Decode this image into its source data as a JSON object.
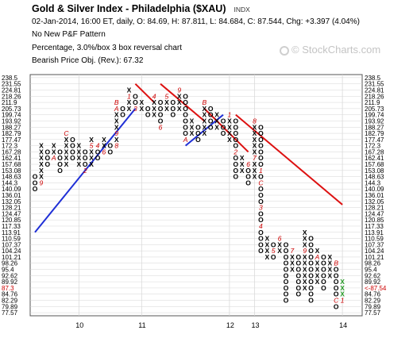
{
  "header": {
    "title": "Gold & Silver Index - Philadelphia ($XAU)",
    "exchange": "INDX",
    "quote_line": "02-Jan-2014, 16:00 ET, daily, O: 84.69, H: 87.811, L: 84.684, C: 87.544, Chg: +3.397 (4.04%)",
    "pattern_line": "No New P&F Pattern",
    "method_line": "Percentage, 3.0%/box 3 box reversal chart",
    "objective_line": "Bearish Price Obj. (Rev.): 67.32"
  },
  "watermark": {
    "text": "© StockCharts.com",
    "logo_icon": "stockcharts-circle-icon"
  },
  "chart_data": {
    "type": "point-and-figure",
    "box_size_percent": 3.0,
    "reversal_boxes": 3,
    "price_levels": [
      "238.5",
      "231.55",
      "224.81",
      "218.26",
      "211.9",
      "205.73",
      "199.74",
      "193.92",
      "188.27",
      "182.79",
      "177.47",
      "172.3",
      "167.28",
      "162.41",
      "157.68",
      "153.08",
      "148.63",
      "144.3",
      "140.09",
      "136.01",
      "132.05",
      "128.21",
      "124.47",
      "120.85",
      "117.33",
      "113.91",
      "110.59",
      "107.37",
      "104.24",
      "101.21",
      "98.26",
      "95.4",
      "92.62",
      "89.92",
      "87.3",
      "84.76",
      "82.29",
      "79.89",
      "77.57"
    ],
    "last_price_label": "<-87.54",
    "last_price_level": "87.3",
    "x_labels": [
      {
        "label": "10",
        "column": 7
      },
      {
        "label": "11",
        "column": 17
      },
      {
        "label": "12",
        "column": 31
      },
      {
        "label": "13",
        "column": 35
      },
      {
        "label": "14",
        "column": 49
      }
    ],
    "columns": [
      {
        "type": "O",
        "top": "148.63",
        "bottom": "140.09"
      },
      {
        "type": "X",
        "top": "172.3",
        "bottom": "144.3",
        "marks": {
          "144.3": "9"
        }
      },
      {
        "type": "O",
        "top": "167.28",
        "bottom": "157.68"
      },
      {
        "type": "X",
        "top": "172.3",
        "bottom": "162.41",
        "marks": {
          "162.41": "A"
        }
      },
      {
        "type": "O",
        "top": "167.28",
        "bottom": "153.08"
      },
      {
        "type": "X",
        "top": "182.79",
        "bottom": "157.68",
        "marks": {
          "182.79": "C"
        }
      },
      {
        "type": "O",
        "top": "177.47",
        "bottom": "162.41"
      },
      {
        "type": "X",
        "top": "172.3",
        "bottom": "157.68"
      },
      {
        "type": "O",
        "top": "167.28",
        "bottom": "153.08",
        "marks": {
          "153.08": "2"
        }
      },
      {
        "type": "X",
        "top": "177.47",
        "bottom": "157.68",
        "marks": {
          "172.3": "5"
        }
      },
      {
        "type": "O",
        "top": "172.3",
        "bottom": "162.41",
        "marks": {
          "172.3": "4"
        }
      },
      {
        "type": "X",
        "top": "177.47",
        "bottom": "167.28",
        "marks": {
          "167.28": "6"
        }
      },
      {
        "type": "O",
        "top": "172.3",
        "bottom": "167.28"
      },
      {
        "type": "X",
        "top": "211.9",
        "bottom": "172.3",
        "marks": {
          "172.3": "8",
          "182.79": "9",
          "205.73": "A",
          "211.9": "B"
        }
      },
      {
        "type": "O",
        "top": "205.73",
        "bottom": "199.74"
      },
      {
        "type": "X",
        "top": "224.81",
        "bottom": "205.73",
        "marks": {
          "218.26": "1"
        }
      },
      {
        "type": "O",
        "top": "218.26",
        "bottom": "205.73",
        "marks": {
          "205.73": "3"
        }
      },
      {
        "type": "X",
        "top": "211.9",
        "bottom": "205.73"
      },
      {
        "type": "O",
        "top": "205.73",
        "bottom": "199.74"
      },
      {
        "type": "X",
        "top": "218.26",
        "bottom": "199.74",
        "marks": {
          "218.26": "4"
        }
      },
      {
        "type": "O",
        "top": "211.9",
        "bottom": "188.27",
        "marks": {
          "188.27": "6"
        }
      },
      {
        "type": "X",
        "top": "218.26",
        "bottom": "205.73",
        "marks": {
          "218.26": "5"
        }
      },
      {
        "type": "O",
        "top": "211.9",
        "bottom": "199.74"
      },
      {
        "type": "X",
        "top": "224.81",
        "bottom": "205.73",
        "marks": {
          "224.81": "9"
        }
      },
      {
        "type": "O",
        "top": "218.26",
        "bottom": "177.47",
        "marks": {
          "177.47": "A"
        }
      },
      {
        "type": "X",
        "top": "193.92",
        "bottom": "182.79"
      },
      {
        "type": "O",
        "top": "188.27",
        "bottom": "177.47"
      },
      {
        "type": "X",
        "top": "211.9",
        "bottom": "182.79",
        "marks": {
          "211.9": "B"
        }
      },
      {
        "type": "O",
        "top": "205.73",
        "bottom": "188.27"
      },
      {
        "type": "X",
        "top": "199.74",
        "bottom": "188.27"
      },
      {
        "type": "O",
        "top": "193.92",
        "bottom": "182.79"
      },
      {
        "type": "X",
        "top": "199.74",
        "bottom": "177.47",
        "marks": {
          "199.74": "1"
        }
      },
      {
        "type": "O",
        "top": "193.92",
        "bottom": "148.63",
        "marks": {
          "167.28": "2"
        }
      },
      {
        "type": "X",
        "top": "162.41",
        "bottom": "153.08"
      },
      {
        "type": "O",
        "top": "157.68",
        "bottom": "144.3",
        "marks": {
          "157.68": "6"
        }
      },
      {
        "type": "X",
        "top": "193.92",
        "bottom": "148.63",
        "marks": {
          "162.41": "7",
          "193.92": "8"
        }
      },
      {
        "type": "O",
        "top": "188.27",
        "bottom": "104.24",
        "marks": {
          "153.08": "1",
          "144.3": "C",
          "128.21": "3",
          "117.33": "4"
        }
      },
      {
        "type": "X",
        "top": "110.59",
        "bottom": "101.21"
      },
      {
        "type": "O",
        "top": "107.37",
        "bottom": "101.21",
        "marks": {
          "104.24": "5"
        }
      },
      {
        "type": "X",
        "top": "110.59",
        "bottom": "104.24",
        "marks": {
          "110.59": "6"
        }
      },
      {
        "type": "O",
        "top": "107.37",
        "bottom": "82.29"
      },
      {
        "type": "X",
        "top": "104.24",
        "bottom": "95.4",
        "marks": {
          "104.24": "7"
        }
      },
      {
        "type": "O",
        "top": "101.21",
        "bottom": "84.76"
      },
      {
        "type": "X",
        "top": "113.91",
        "bottom": "87.3",
        "marks": {
          "104.24": "9"
        }
      },
      {
        "type": "O",
        "top": "110.59",
        "bottom": "82.29"
      },
      {
        "type": "X",
        "top": "104.24",
        "bottom": "89.92",
        "marks": {
          "101.21": "A"
        }
      },
      {
        "type": "O",
        "top": "101.21",
        "bottom": "87.3"
      },
      {
        "type": "X",
        "top": "101.21",
        "bottom": "92.62"
      },
      {
        "type": "O",
        "top": "98.26",
        "bottom": "79.89",
        "marks": {
          "98.26": "B",
          "82.29": "C"
        }
      },
      {
        "type": "X",
        "top": "89.92",
        "bottom": "82.29",
        "color": "#2a9d2a",
        "marks": {
          "82.29": "1"
        }
      }
    ],
    "trend_lines": [
      {
        "name": "bullish-support",
        "color": "#1f2fd6",
        "from": {
          "column": 0,
          "price": "113.91"
        },
        "to": {
          "column": 16,
          "price": "205.73"
        }
      },
      {
        "name": "bullish-support-2",
        "color": "#1f2fd6",
        "from": {
          "column": 24,
          "price": "172.3"
        },
        "to": {
          "column": 30,
          "price": "199.74"
        }
      },
      {
        "name": "bearish-resistance-1",
        "color": "#dd1111",
        "from": {
          "column": 16,
          "price": "231.55"
        },
        "to": {
          "column": 19,
          "price": "211.9"
        }
      },
      {
        "name": "bearish-resistance-2",
        "color": "#dd1111",
        "from": {
          "column": 20,
          "price": "231.55"
        },
        "to": {
          "column": 27,
          "price": "193.92"
        }
      },
      {
        "name": "bearish-resistance-3",
        "color": "#dd1111",
        "from": {
          "column": 27,
          "price": "205.73"
        },
        "to": {
          "column": 34,
          "price": "167.28"
        }
      },
      {
        "name": "bearish-resistance-4",
        "color": "#dd1111",
        "from": {
          "column": 32,
          "price": "199.74"
        },
        "to": {
          "column": 49,
          "price": "130.0"
        }
      }
    ],
    "colors": {
      "x_mark": "#000000",
      "o_mark": "#000000",
      "month_mark": "#cc0000",
      "last_column": "#2a9d2a",
      "grid": "#d6d6d6",
      "last_price": "#cc0000"
    },
    "grid": true
  }
}
